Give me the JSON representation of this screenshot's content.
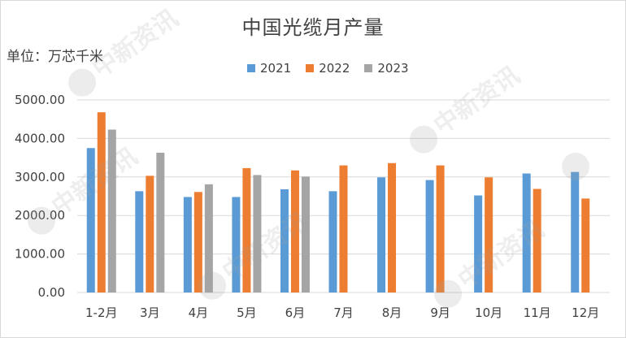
{
  "title": "中国光缆月产量",
  "unit_label": "单位：万芯千米",
  "watermark_text": "中新资讯",
  "colors": {
    "s2021": "#5b9bd5",
    "s2022": "#ed7d31",
    "s2023": "#a5a5a5",
    "grid": "#d9d9d9",
    "text": "#404040"
  },
  "chart_data": {
    "type": "bar",
    "title": "中国光缆月产量",
    "ylabel": "单位：万芯千米",
    "xlabel": "",
    "ylim": [
      0,
      5000
    ],
    "y_ticks": [
      "0.00",
      "1000.00",
      "2000.00",
      "3000.00",
      "4000.00",
      "5000.00"
    ],
    "y_tick_values": [
      0,
      1000,
      2000,
      3000,
      4000,
      5000
    ],
    "grid": true,
    "legend_position": "top",
    "categories": [
      "1-2月",
      "3月",
      "4月",
      "5月",
      "6月",
      "7月",
      "8月",
      "9月",
      "10月",
      "11月",
      "12月"
    ],
    "series": [
      {
        "name": "2021",
        "color": "#5b9bd5",
        "values": [
          3750,
          2630,
          2480,
          2480,
          2680,
          2630,
          2990,
          2920,
          2520,
          3090,
          3130
        ]
      },
      {
        "name": "2022",
        "color": "#ed7d31",
        "values": [
          4680,
          3030,
          2610,
          3230,
          3170,
          3300,
          3360,
          3300,
          2990,
          2690,
          2440
        ]
      },
      {
        "name": "2023",
        "color": "#a5a5a5",
        "values": [
          4230,
          3630,
          2810,
          3050,
          3010,
          null,
          null,
          null,
          null,
          null,
          null
        ]
      }
    ]
  }
}
